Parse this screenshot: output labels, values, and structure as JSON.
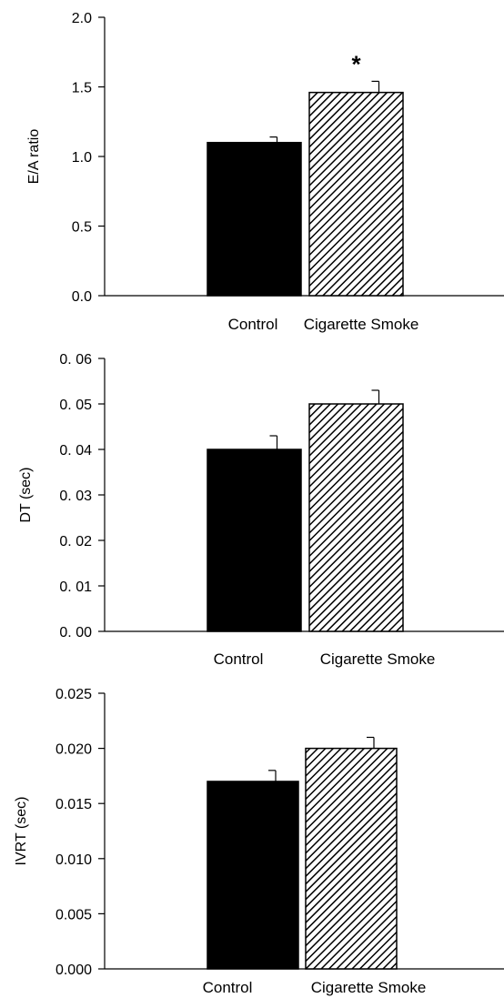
{
  "chart_data": [
    {
      "type": "bar",
      "categories": [
        "Control",
        "Cigarette Smoke"
      ],
      "values": [
        1.1,
        1.46
      ],
      "errors": [
        0.04,
        0.08
      ],
      "title": "",
      "xlabel": "",
      "ylabel": "E/A ratio",
      "ylim": [
        0.0,
        2.0
      ],
      "yticks": [
        "0.0",
        "0.5",
        "1.0",
        "1.5",
        "2.0"
      ],
      "ytick_values": [
        0.0,
        0.5,
        1.0,
        1.5,
        2.0
      ],
      "annotations": [
        {
          "category": "Cigarette Smoke",
          "text": "*"
        }
      ],
      "bar_fills": [
        "solid-black",
        "diagonal-hatch"
      ],
      "grid": false,
      "legend": "none"
    },
    {
      "type": "bar",
      "categories": [
        "Control",
        "Cigarette Smoke"
      ],
      "values": [
        0.04,
        0.05
      ],
      "errors": [
        0.003,
        0.003
      ],
      "title": "",
      "xlabel": "",
      "ylabel": "DT (sec)",
      "ylim": [
        0.0,
        0.06
      ],
      "yticks": [
        "0. 00",
        "0. 01",
        "0. 02",
        "0. 03",
        "0. 04",
        "0. 05",
        "0. 06"
      ],
      "ytick_values": [
        0.0,
        0.01,
        0.02,
        0.03,
        0.04,
        0.05,
        0.06
      ],
      "annotations": [],
      "bar_fills": [
        "solid-black",
        "diagonal-hatch"
      ],
      "grid": false,
      "legend": "none"
    },
    {
      "type": "bar",
      "categories": [
        "Control",
        "Cigarette Smoke"
      ],
      "values": [
        0.017,
        0.02
      ],
      "errors": [
        0.001,
        0.001
      ],
      "title": "",
      "xlabel": "",
      "ylabel": "IVRT (sec)",
      "ylim": [
        0.0,
        0.025
      ],
      "yticks": [
        "0.000",
        "0.005",
        "0.010",
        "0.015",
        "0.020",
        "0.025"
      ],
      "ytick_values": [
        0.0,
        0.005,
        0.01,
        0.015,
        0.02,
        0.025
      ],
      "annotations": [],
      "bar_fills": [
        "solid-black",
        "diagonal-hatch"
      ],
      "grid": false,
      "legend": "none"
    }
  ]
}
